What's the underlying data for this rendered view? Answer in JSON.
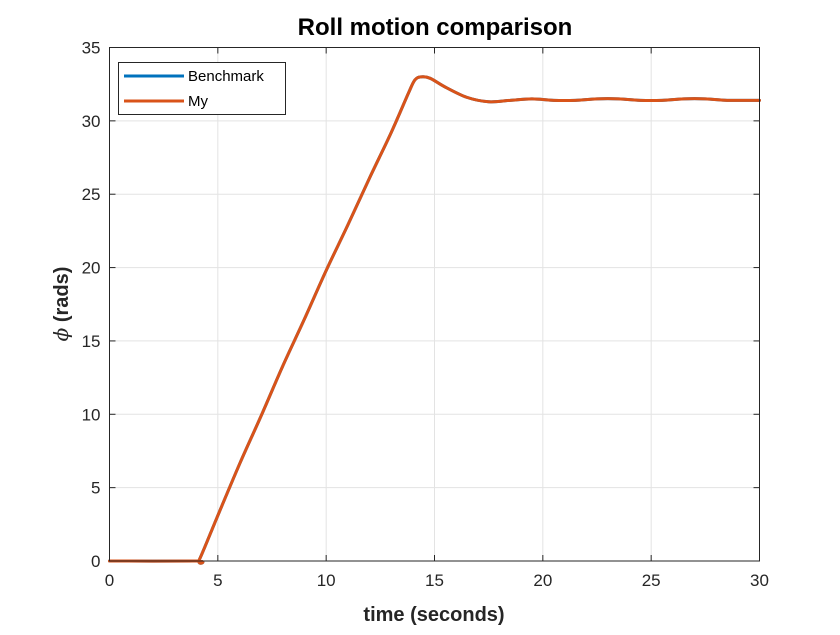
{
  "chart_data": {
    "type": "line",
    "title": "Roll motion comparison",
    "xlabel": "time (seconds)",
    "ylabel": "ϕ (rads)",
    "xlim": [
      0,
      30
    ],
    "ylim": [
      0,
      35
    ],
    "xticks": [
      0,
      5,
      10,
      15,
      20,
      25,
      30
    ],
    "yticks": [
      0,
      5,
      10,
      15,
      20,
      25,
      30,
      35
    ],
    "grid": true,
    "legend_position": "top-left",
    "series": [
      {
        "name": "Benchmark",
        "color": "#0072BD",
        "x": [
          0,
          4,
          4.15,
          5,
          6,
          7,
          8,
          9,
          10,
          11,
          12,
          13,
          13.8,
          14.1,
          14.4,
          14.8,
          15.5,
          16.5,
          17.5,
          18.5,
          19.5,
          20.5,
          21.5,
          22.5,
          23.5,
          24.5,
          25.5,
          26.5,
          27.5,
          28.5,
          29.5,
          30
        ],
        "y": [
          0,
          0,
          0.1,
          3.1,
          6.6,
          9.9,
          13.3,
          16.5,
          19.8,
          22.9,
          26.1,
          29.2,
          31.9,
          32.8,
          33.0,
          32.9,
          32.3,
          31.6,
          31.3,
          31.4,
          31.5,
          31.4,
          31.4,
          31.5,
          31.5,
          31.4,
          31.4,
          31.5,
          31.5,
          31.4,
          31.4,
          31.4
        ]
      },
      {
        "name": "My",
        "color": "#D95319",
        "x": [
          0,
          4,
          4.15,
          5,
          6,
          7,
          8,
          9,
          10,
          11,
          12,
          13,
          13.8,
          14.1,
          14.4,
          14.8,
          15.5,
          16.5,
          17.5,
          18.5,
          19.5,
          20.5,
          21.5,
          22.5,
          23.5,
          24.5,
          25.5,
          26.5,
          27.5,
          28.5,
          29.5,
          30
        ],
        "y": [
          0,
          0,
          0.1,
          3.1,
          6.6,
          9.9,
          13.3,
          16.5,
          19.8,
          22.9,
          26.1,
          29.2,
          31.9,
          32.8,
          33.0,
          32.9,
          32.3,
          31.6,
          31.3,
          31.4,
          31.5,
          31.4,
          31.4,
          31.5,
          31.5,
          31.4,
          31.4,
          31.5,
          31.5,
          31.4,
          31.4,
          31.4
        ]
      }
    ]
  }
}
